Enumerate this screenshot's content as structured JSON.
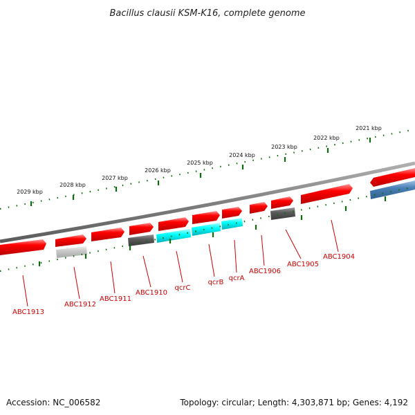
{
  "title": "Bacillus clausii KSM-K16, complete genome",
  "accession": "Accession: NC_006582",
  "summary": "Topology: circular; Length: 4,303,871 bp; Genes: 4,192",
  "colors": {
    "gene_red": "#ff0000",
    "gene_red_dark": "#b30000",
    "gene_red_light": "#ff8080",
    "cyan": "#00ffff",
    "cyan_dark": "#00a9b0",
    "grey_dark": "#555555",
    "grey_light": "#c8c8c8",
    "blue": "#4a7fb5",
    "backbone": "#808080",
    "tick_green": "#006600",
    "label_red": "#cc0000"
  },
  "ticks_outer": [
    "2029 kbp",
    "2028 kbp",
    "2027 kbp",
    "2026 kbp",
    "2025 kbp",
    "2024 kbp",
    "2023 kbp",
    "2022 kbp",
    "2021 kbp"
  ],
  "genes": [
    {
      "name": "ABC1913",
      "kind": "red"
    },
    {
      "name": "ABC1912",
      "kind": "grey_light"
    },
    {
      "name": "ABC1911",
      "kind": "red"
    },
    {
      "name": "ABC1910",
      "kind": "grey_dark"
    },
    {
      "name": "qcrC",
      "kind": "cyan"
    },
    {
      "name": "qcrB",
      "kind": "cyan"
    },
    {
      "name": "qcrA",
      "kind": "cyan"
    },
    {
      "name": "ABC1906",
      "kind": "red"
    },
    {
      "name": "ABC1905",
      "kind": "grey_dark"
    },
    {
      "name": "ABC1904",
      "kind": "red"
    }
  ]
}
